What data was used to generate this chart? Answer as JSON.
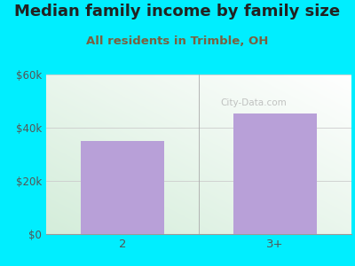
{
  "title": "Median family income by family size",
  "subtitle": "All residents in Trimble, OH",
  "categories": [
    "2",
    "3+"
  ],
  "values": [
    35000,
    45500
  ],
  "bar_color": "#b8a0d8",
  "background_color": "#00eeff",
  "title_color": "#222222",
  "subtitle_color": "#7a6040",
  "tick_color": "#555555",
  "ylim": [
    0,
    60000
  ],
  "yticks": [
    0,
    20000,
    40000,
    60000
  ],
  "ytick_labels": [
    "$0",
    "$20k",
    "$40k",
    "$60k"
  ],
  "watermark": "City-Data.com",
  "title_fontsize": 13,
  "subtitle_fontsize": 9.5,
  "figsize": [
    4.0,
    3.0
  ],
  "dpi": 100
}
